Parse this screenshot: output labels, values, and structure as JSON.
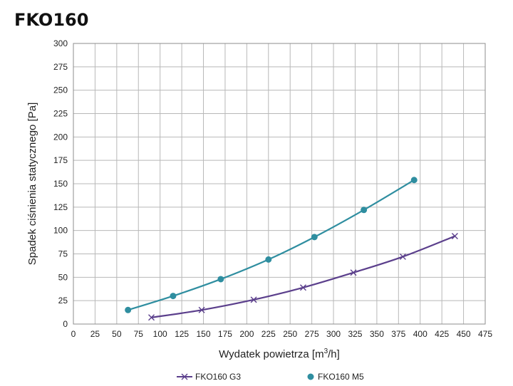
{
  "chart_data": {
    "type": "line",
    "title": "FKO160",
    "xlabel_prefix": "Wydatek powietrza [m",
    "xlabel_sup": "3",
    "xlabel_suffix": "/h]",
    "ylabel": "Spadek ciśnienia statycznego [Pa]",
    "xlim": [
      0,
      475
    ],
    "ylim": [
      0,
      300
    ],
    "x_ticks": [
      0,
      25,
      50,
      75,
      100,
      125,
      150,
      175,
      200,
      225,
      250,
      275,
      300,
      325,
      350,
      375,
      400,
      425,
      450,
      475
    ],
    "y_ticks": [
      0,
      25,
      50,
      75,
      100,
      125,
      150,
      175,
      200,
      225,
      250,
      275,
      300
    ],
    "grid": true,
    "legend_position": "bottom",
    "series": [
      {
        "name": "FKO160 G3",
        "color": "#5b3f8c",
        "marker": "x",
        "x": [
          90,
          148,
          208,
          265,
          323,
          380,
          440
        ],
        "y": [
          7,
          15,
          26,
          39,
          55,
          72,
          94
        ]
      },
      {
        "name": "FKO160 M5",
        "color": "#2f8ea0",
        "marker": "circle",
        "x": [
          63,
          115,
          170,
          225,
          278,
          335,
          393
        ],
        "y": [
          15,
          30,
          48,
          69,
          93,
          122,
          154
        ]
      }
    ]
  }
}
